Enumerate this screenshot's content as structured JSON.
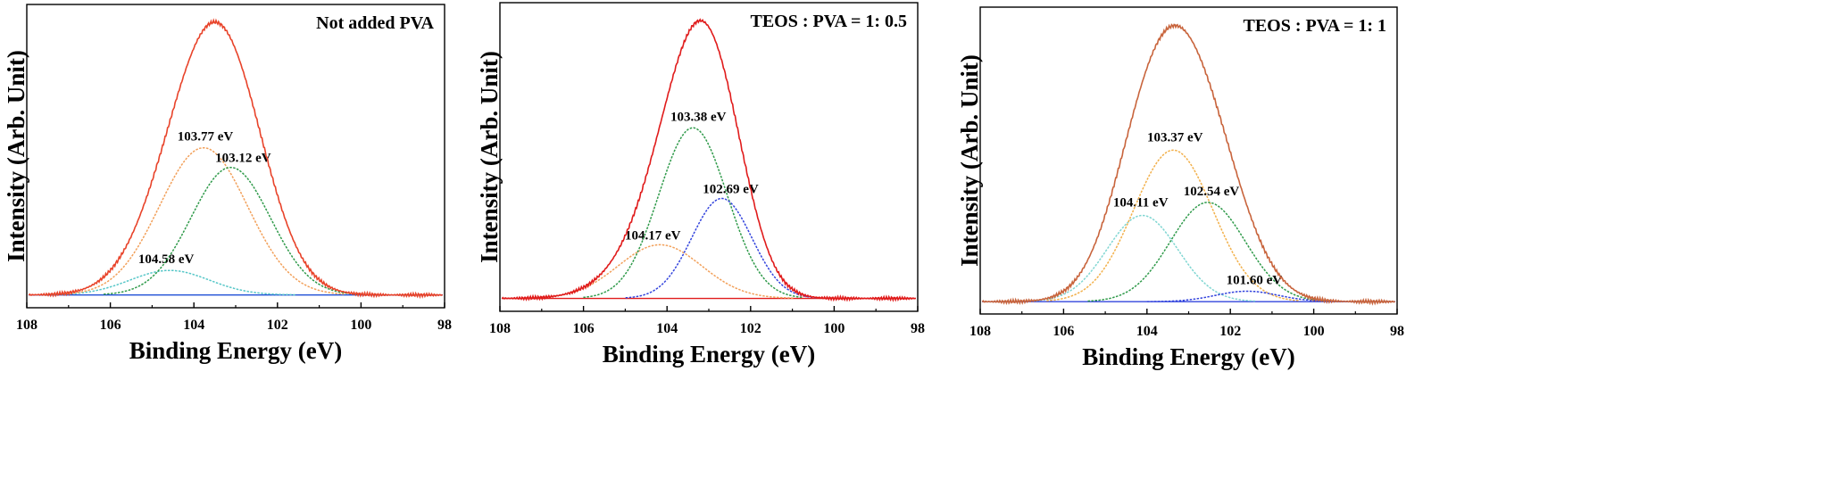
{
  "chart_data": [
    {
      "type": "line",
      "title": "Not added PVA",
      "xlabel": "Binding Energy (eV)",
      "ylabel": "Intensity (Arb. Unit)",
      "xlim": [
        108,
        98
      ],
      "ylim": [
        0,
        1.0
      ],
      "x_ticks": [
        "108",
        "106",
        "104",
        "102",
        "100",
        "98"
      ],
      "grid": false,
      "envelope": {
        "color": "#e8432a",
        "peaks": [
          [
            104.58,
            0.1,
            0.95
          ],
          [
            103.77,
            0.6,
            1.05
          ],
          [
            103.12,
            0.52,
            0.95
          ]
        ]
      },
      "baseline": {
        "color": "#1f4fd6",
        "value": 0.015
      },
      "components": [
        {
          "label": "104.58 eV",
          "center": 104.58,
          "height": 0.1,
          "sigma": 0.95,
          "color": "#57c7c8"
        },
        {
          "label": "103.77 eV",
          "center": 103.77,
          "height": 0.6,
          "sigma": 1.05,
          "color": "#f2a05a"
        },
        {
          "label": "103.12 eV",
          "center": 103.12,
          "height": 0.52,
          "sigma": 0.95,
          "color": "#2f9a4a"
        }
      ]
    },
    {
      "type": "line",
      "title": "TEOS : PVA = 1: 0.5",
      "xlabel": "Binding Energy (eV)",
      "ylabel": "Intensity (Arb. Unit)",
      "xlim": [
        108,
        98
      ],
      "ylim": [
        0,
        1.0
      ],
      "x_ticks": [
        "108",
        "106",
        "104",
        "102",
        "100",
        "98"
      ],
      "grid": false,
      "envelope": {
        "color": "#e01b1b",
        "peaks": [
          [
            104.17,
            0.22,
            1.0
          ],
          [
            103.38,
            0.7,
            0.82
          ],
          [
            102.69,
            0.41,
            0.72
          ]
        ]
      },
      "baseline": {
        "color": "#e01b1b",
        "value": 0.015
      },
      "components": [
        {
          "label": "104.17 eV",
          "center": 104.17,
          "height": 0.22,
          "sigma": 1.0,
          "color": "#f2a05a"
        },
        {
          "label": "103.38 eV",
          "center": 103.38,
          "height": 0.7,
          "sigma": 0.82,
          "color": "#2f9a4a"
        },
        {
          "label": "102.69 eV",
          "center": 102.69,
          "height": 0.41,
          "sigma": 0.72,
          "color": "#3344dd"
        }
      ]
    },
    {
      "type": "line",
      "title": "TEOS : PVA = 1: 1",
      "xlabel": "Binding Energy (eV)",
      "ylabel": "Intensity (Arb. Unit)",
      "xlim": [
        108,
        98
      ],
      "ylim": [
        0,
        1.0
      ],
      "x_ticks": [
        "108",
        "106",
        "104",
        "102",
        "100",
        "98"
      ],
      "grid": false,
      "envelope": {
        "color": "#c8643c",
        "peaks": [
          [
            104.11,
            0.33,
            0.85
          ],
          [
            103.37,
            0.58,
            0.95
          ],
          [
            102.54,
            0.38,
            0.9
          ],
          [
            101.6,
            0.04,
            0.75
          ]
        ]
      },
      "baseline": {
        "color": "#3344dd",
        "value": 0.012
      },
      "components": [
        {
          "label": "104.11 eV",
          "center": 104.11,
          "height": 0.33,
          "sigma": 0.85,
          "color": "#7fd6d2"
        },
        {
          "label": "103.37 eV",
          "center": 103.37,
          "height": 0.58,
          "sigma": 0.95,
          "color": "#f2b04a"
        },
        {
          "label": "102.54 eV",
          "center": 102.54,
          "height": 0.38,
          "sigma": 0.9,
          "color": "#2f9a4a"
        },
        {
          "label": "101.60 eV",
          "center": 101.6,
          "height": 0.04,
          "sigma": 0.75,
          "color": "#3344dd"
        }
      ]
    }
  ]
}
